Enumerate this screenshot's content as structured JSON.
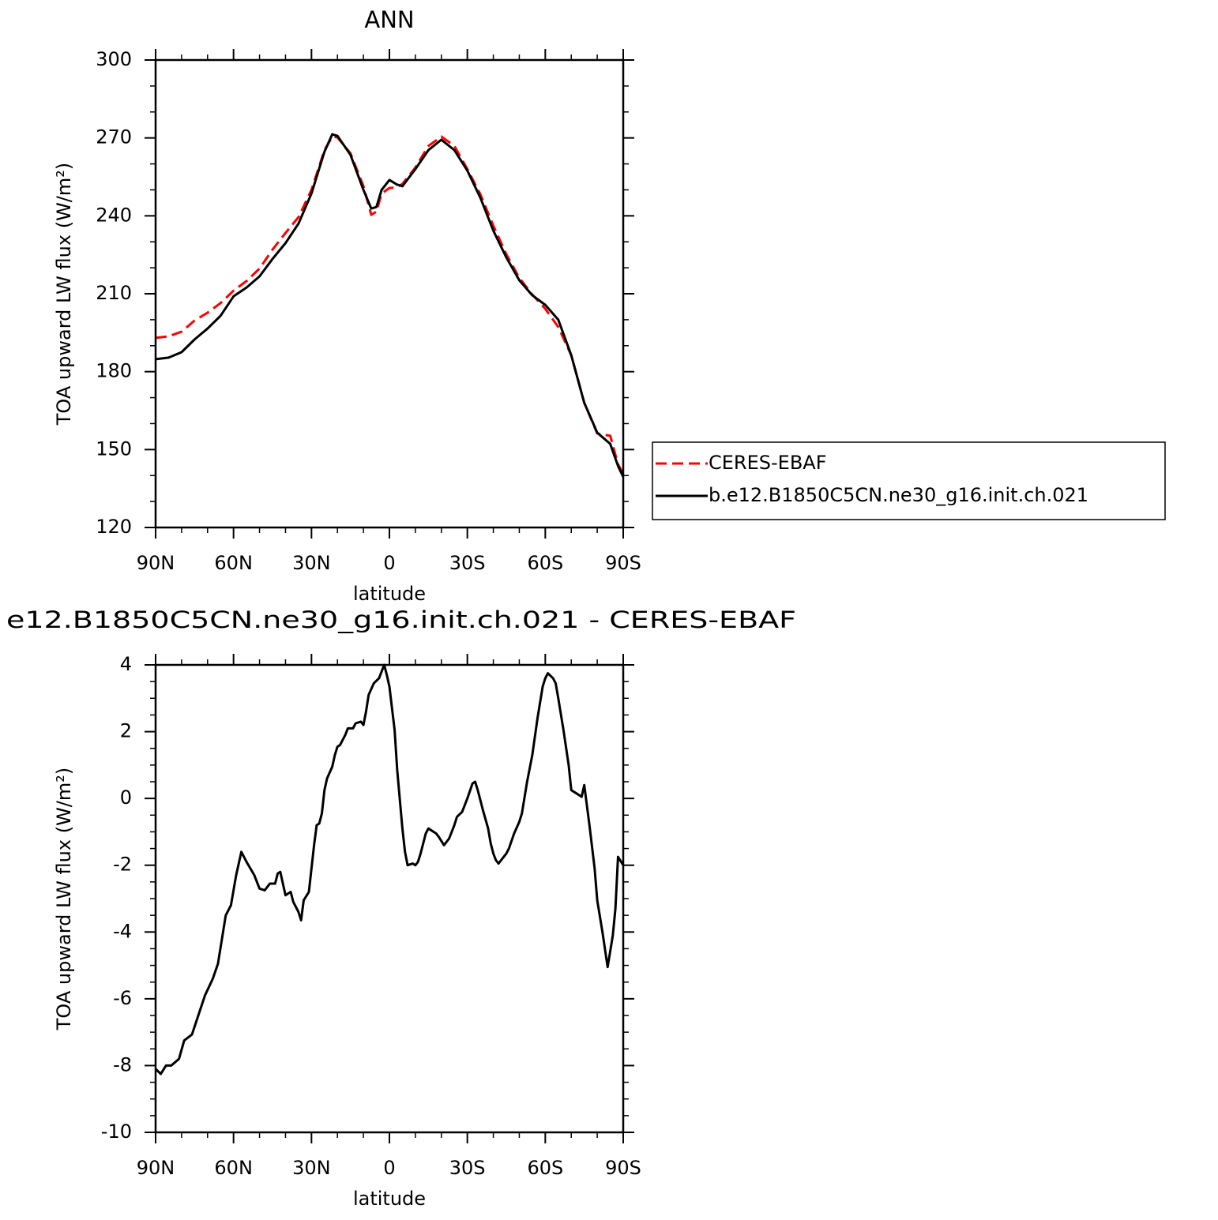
{
  "chart_data": [
    {
      "type": "line",
      "title": "ANN",
      "x_label": "latitude",
      "y_label": "TOA upward LW flux (W/m²)",
      "x": [
        90,
        85,
        80,
        75,
        70,
        65,
        60,
        55,
        50,
        45,
        40,
        35,
        30,
        25,
        22,
        20,
        15,
        10,
        7,
        5,
        3,
        0,
        -3,
        -5,
        -10,
        -15,
        -20,
        -25,
        -30,
        -35,
        -40,
        -45,
        -50,
        -55,
        -60,
        -65,
        -70,
        -75,
        -80,
        -85,
        -88,
        -90
      ],
      "xlim": [
        90,
        -90
      ],
      "xticks": [
        {
          "value": 90,
          "label": "90N"
        },
        {
          "value": 60,
          "label": "60N"
        },
        {
          "value": 30,
          "label": "30N"
        },
        0,
        {
          "value": -30,
          "label": "30S"
        },
        {
          "value": -60,
          "label": "60S"
        },
        {
          "value": -90,
          "label": "90S"
        }
      ],
      "ylim": [
        120,
        300
      ],
      "yticks": [
        120,
        150,
        180,
        210,
        240,
        270,
        300
      ],
      "series": [
        {
          "name": "CERES-EBAF",
          "color": "#ff0000",
          "dashed": true,
          "values": [
            193,
            193.6,
            195.4,
            199.7,
            202.7,
            206.4,
            211.2,
            214.9,
            219.7,
            227,
            233.4,
            239.5,
            250,
            265.3,
            270.5,
            270.2,
            264.1,
            251.4,
            240.4,
            241.6,
            248.6,
            250.7,
            251,
            252.3,
            258.6,
            266.9,
            270.5,
            266.9,
            258,
            248.3,
            236.2,
            225.2,
            216.1,
            209.7,
            204.2,
            197.2,
            186.3,
            168,
            156.2,
            155.3,
            144.3,
            140.7
          ]
        },
        {
          "name": "b.e12.B1850C5CN.ne30_g16.init.ch.021",
          "color": "#000000",
          "dashed": false,
          "values": [
            184.8,
            185.4,
            187.5,
            192.4,
            196.6,
            201.5,
            209,
            212.4,
            216.7,
            223.4,
            229.5,
            237,
            248.6,
            264.7,
            271.4,
            270.8,
            263.5,
            250,
            242.8,
            243.4,
            250,
            253.8,
            252,
            251.4,
            258,
            265.3,
            269.3,
            265.3,
            257.4,
            247,
            234.3,
            224,
            215.2,
            209.4,
            205.7,
            200,
            186.3,
            168,
            156.5,
            152.2,
            143.7,
            139.5
          ]
        }
      ]
    },
    {
      "type": "line",
      "title": "e12.B1850C5CN.ne30_g16.init.ch.021 - CERES-EBAF",
      "x_label": "latitude",
      "y_label": "TOA upward LW flux (W/m²)",
      "x": [
        90,
        88,
        86,
        84,
        81,
        79,
        76,
        74,
        71,
        68,
        66,
        63,
        61,
        59,
        57,
        55,
        52,
        50,
        48,
        46,
        44,
        43,
        42,
        40,
        38,
        37,
        35,
        34,
        33,
        31,
        29,
        28,
        27,
        26,
        25,
        24,
        22,
        21,
        20,
        19,
        17,
        16,
        14,
        13,
        11,
        10,
        9,
        8,
        6,
        4,
        2,
        1,
        0,
        -2,
        -3,
        -5,
        -6,
        -7,
        -9,
        -10,
        -11,
        -12,
        -14,
        -15,
        -16,
        -18,
        -19,
        -21,
        -23,
        -25,
        -26,
        -28,
        -30,
        -32,
        -33,
        -34,
        -36,
        -38,
        -39,
        -40,
        -41,
        -42,
        -43,
        -45,
        -46,
        -48,
        -50,
        -51,
        -53,
        -55,
        -57,
        -59,
        -60,
        -61,
        -63,
        -64,
        -65,
        -67,
        -69,
        -70,
        -71,
        -73,
        -74,
        -75,
        -76,
        -77,
        -79,
        -80,
        -82,
        -84,
        -86,
        -87,
        -88,
        -90
      ],
      "xlim": [
        90,
        -90
      ],
      "xticks": [
        {
          "value": 90,
          "label": "90N"
        },
        {
          "value": 60,
          "label": "60N"
        },
        {
          "value": 30,
          "label": "30N"
        },
        0,
        {
          "value": -30,
          "label": "30S"
        },
        {
          "value": -60,
          "label": "60S"
        },
        {
          "value": -90,
          "label": "90S"
        }
      ],
      "ylim": [
        -10,
        4
      ],
      "yticks": [
        -10,
        -8,
        -6,
        -4,
        -2,
        0,
        2,
        4
      ],
      "series": [
        {
          "color": "#000000",
          "dashed": false,
          "values": [
            -8.1,
            -8.25,
            -8,
            -8,
            -7.8,
            -7.25,
            -7.07,
            -6.6,
            -5.9,
            -5.4,
            -4.95,
            -3.5,
            -3.2,
            -2.3,
            -1.6,
            -1.9,
            -2.3,
            -2.7,
            -2.75,
            -2.55,
            -2.55,
            -2.25,
            -2.2,
            -2.9,
            -2.8,
            -3.1,
            -3.4,
            -3.65,
            -3.05,
            -2.8,
            -1.4,
            -0.8,
            -0.75,
            -0.45,
            0.25,
            0.6,
            0.95,
            1.3,
            1.55,
            1.6,
            1.9,
            2.1,
            2.1,
            2.25,
            2.3,
            2.2,
            2.6,
            3.1,
            3.45,
            3.6,
            4,
            3.7,
            3.35,
            2.05,
            0.85,
            -0.9,
            -1.6,
            -2,
            -1.95,
            -2,
            -1.9,
            -1.65,
            -1.05,
            -0.9,
            -0.95,
            -1.05,
            -1.15,
            -1.4,
            -1.2,
            -0.8,
            -0.55,
            -0.4,
            0,
            0.45,
            0.5,
            0.25,
            -0.35,
            -0.9,
            -1.35,
            -1.65,
            -1.85,
            -1.95,
            -1.85,
            -1.65,
            -1.5,
            -1.05,
            -0.7,
            -0.45,
            0.5,
            1.3,
            2.4,
            3.35,
            3.6,
            3.75,
            3.6,
            3.45,
            3,
            2.05,
            1,
            0.25,
            0.2,
            0.1,
            0.05,
            0.4,
            -0.2,
            -0.8,
            -2.1,
            -3.05,
            -4,
            -5.05,
            -4.1,
            -3.3,
            -1.75,
            -2
          ]
        }
      ]
    }
  ]
}
